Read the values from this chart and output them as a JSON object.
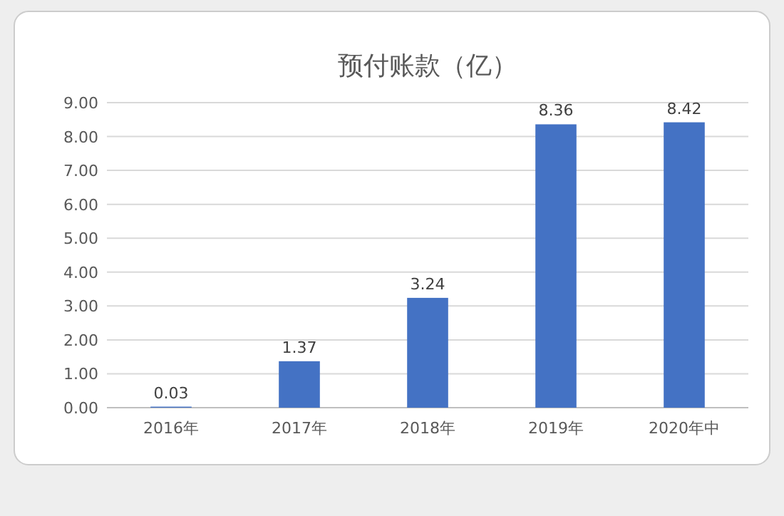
{
  "chart_data": {
    "type": "bar",
    "title": "预付账款（亿）",
    "categories": [
      "2016年",
      "2017年",
      "2018年",
      "2019年",
      "2020年中"
    ],
    "values": [
      0.03,
      1.37,
      3.24,
      8.36,
      8.42
    ],
    "color": "#4472c4",
    "ylim": [
      0,
      9
    ],
    "yticks": [
      {
        "value": 0,
        "label": "0.00"
      },
      {
        "value": 1,
        "label": "1.00"
      },
      {
        "value": 2,
        "label": "2.00"
      },
      {
        "value": 3,
        "label": "3.00"
      },
      {
        "value": 4,
        "label": "4.00"
      },
      {
        "value": 5,
        "label": "5.00"
      },
      {
        "value": 6,
        "label": "6.00"
      },
      {
        "value": 7,
        "label": "7.00"
      },
      {
        "value": 8,
        "label": "8.00"
      },
      {
        "value": 9,
        "label": "9.00"
      }
    ],
    "grid": "y",
    "data_labels": true
  }
}
